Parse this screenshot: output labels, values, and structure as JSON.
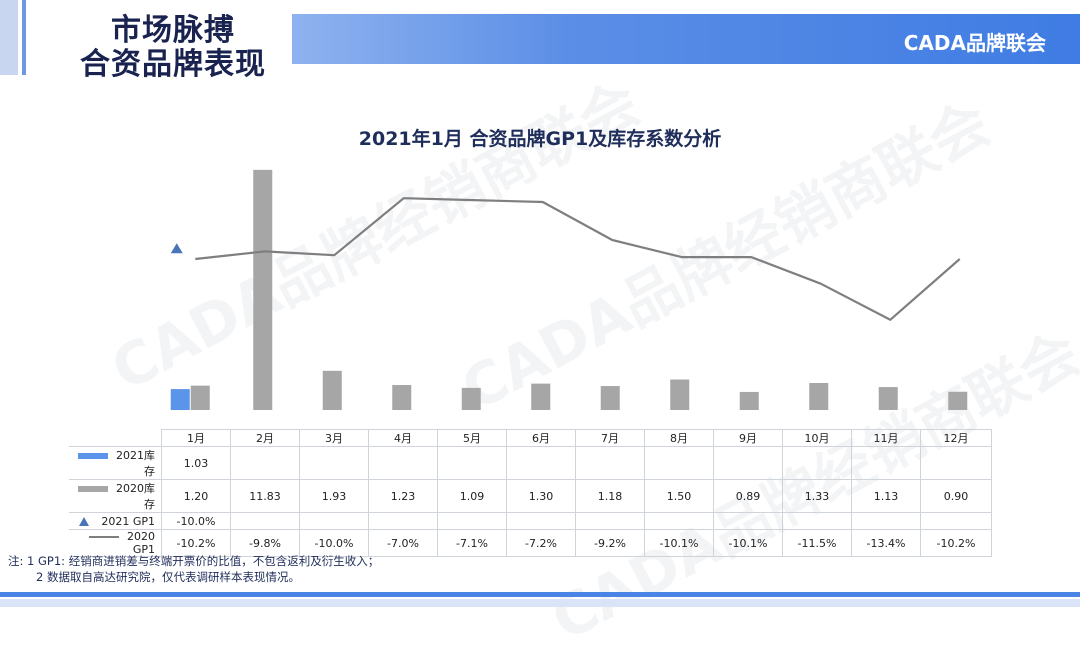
{
  "header": {
    "title_line1": "市场脉搏",
    "title_line2": "合资品牌表现",
    "brand": "CADA品牌联会"
  },
  "watermark": "CADA品牌经销商联会",
  "chart_data": {
    "type": "bar",
    "title": "2021年1月 合资品牌GP1及库存系数分析",
    "categories": [
      "1月",
      "2月",
      "3月",
      "4月",
      "5月",
      "6月",
      "7月",
      "8月",
      "9月",
      "10月",
      "11月",
      "12月"
    ],
    "series": [
      {
        "name": "2021库存",
        "kind": "bar",
        "color": "#5b95ea",
        "values": [
          1.03,
          null,
          null,
          null,
          null,
          null,
          null,
          null,
          null,
          null,
          null,
          null
        ],
        "labels": [
          "1.03",
          "",
          "",
          "",
          "",
          "",
          "",
          "",
          "",
          "",
          "",
          ""
        ]
      },
      {
        "name": "2020库存",
        "kind": "bar",
        "color": "#a6a6a6",
        "values": [
          1.2,
          11.83,
          1.93,
          1.23,
          1.09,
          1.3,
          1.18,
          1.5,
          0.89,
          1.33,
          1.13,
          0.9
        ],
        "labels": [
          "1.20",
          "11.83",
          "1.93",
          "1.23",
          "1.09",
          "1.30",
          "1.18",
          "1.50",
          "0.89",
          "1.33",
          "1.13",
          "0.90"
        ]
      },
      {
        "name": "2021 GP1",
        "kind": "marker",
        "color": "#4a74b8",
        "values": [
          -10.0,
          null,
          null,
          null,
          null,
          null,
          null,
          null,
          null,
          null,
          null,
          null
        ],
        "labels": [
          "-10.0%",
          "",
          "",
          "",
          "",
          "",
          "",
          "",
          "",
          "",
          "",
          ""
        ]
      },
      {
        "name": "2020 GP1",
        "kind": "line",
        "color": "#7f7f7f",
        "values": [
          -10.2,
          -9.8,
          -10.0,
          -7.0,
          -7.1,
          -7.2,
          -9.2,
          -10.1,
          -10.1,
          -11.5,
          -13.4,
          -10.2
        ],
        "labels": [
          "-10.2%",
          "-9.8%",
          "-10.0%",
          "-7.0%",
          "-7.1%",
          "-7.2%",
          "-9.2%",
          "-10.1%",
          "-10.1%",
          "-11.5%",
          "-13.4%",
          "-10.2%"
        ]
      }
    ]
  },
  "notes": {
    "line1": "注: 1 GP1: 经销商进销差与终端开票价的比值，不包含返利及衍生收入；",
    "line2": "2 数据取自高达研究院，仅代表调研样本表现情况。"
  }
}
